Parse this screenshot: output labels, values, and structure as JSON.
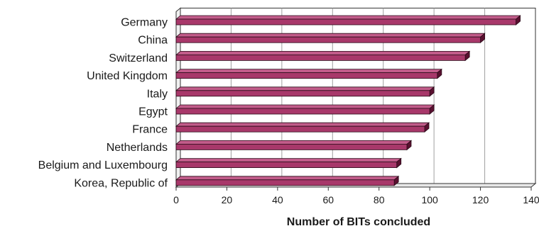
{
  "chart_data": {
    "type": "bar",
    "orientation": "horizontal",
    "title": "",
    "xlabel": "Number of BITs concluded",
    "ylabel": "",
    "categories": [
      "Germany",
      "China",
      "Switzerland",
      "United Kingdom",
      "Italy",
      "Egypt",
      "France",
      "Netherlands",
      "Belgium and Luxembourg",
      "Korea, Republic of"
    ],
    "values": [
      134,
      120,
      114,
      103,
      100,
      100,
      98,
      91,
      87,
      86
    ],
    "xlim": [
      0,
      140
    ],
    "xticks": [
      "0",
      "20",
      "40",
      "60",
      "80",
      "100",
      "120",
      "140"
    ],
    "grid": "vertical",
    "bar_style": "3d",
    "colors": {
      "bar_front": "#a8386a",
      "bar_top": "#c25c8a",
      "bar_side": "#5a1030",
      "bar_outline": "#2a0a18",
      "grid": "#a0a0a0",
      "wall": "#ffffff",
      "axis": "#333333"
    }
  }
}
